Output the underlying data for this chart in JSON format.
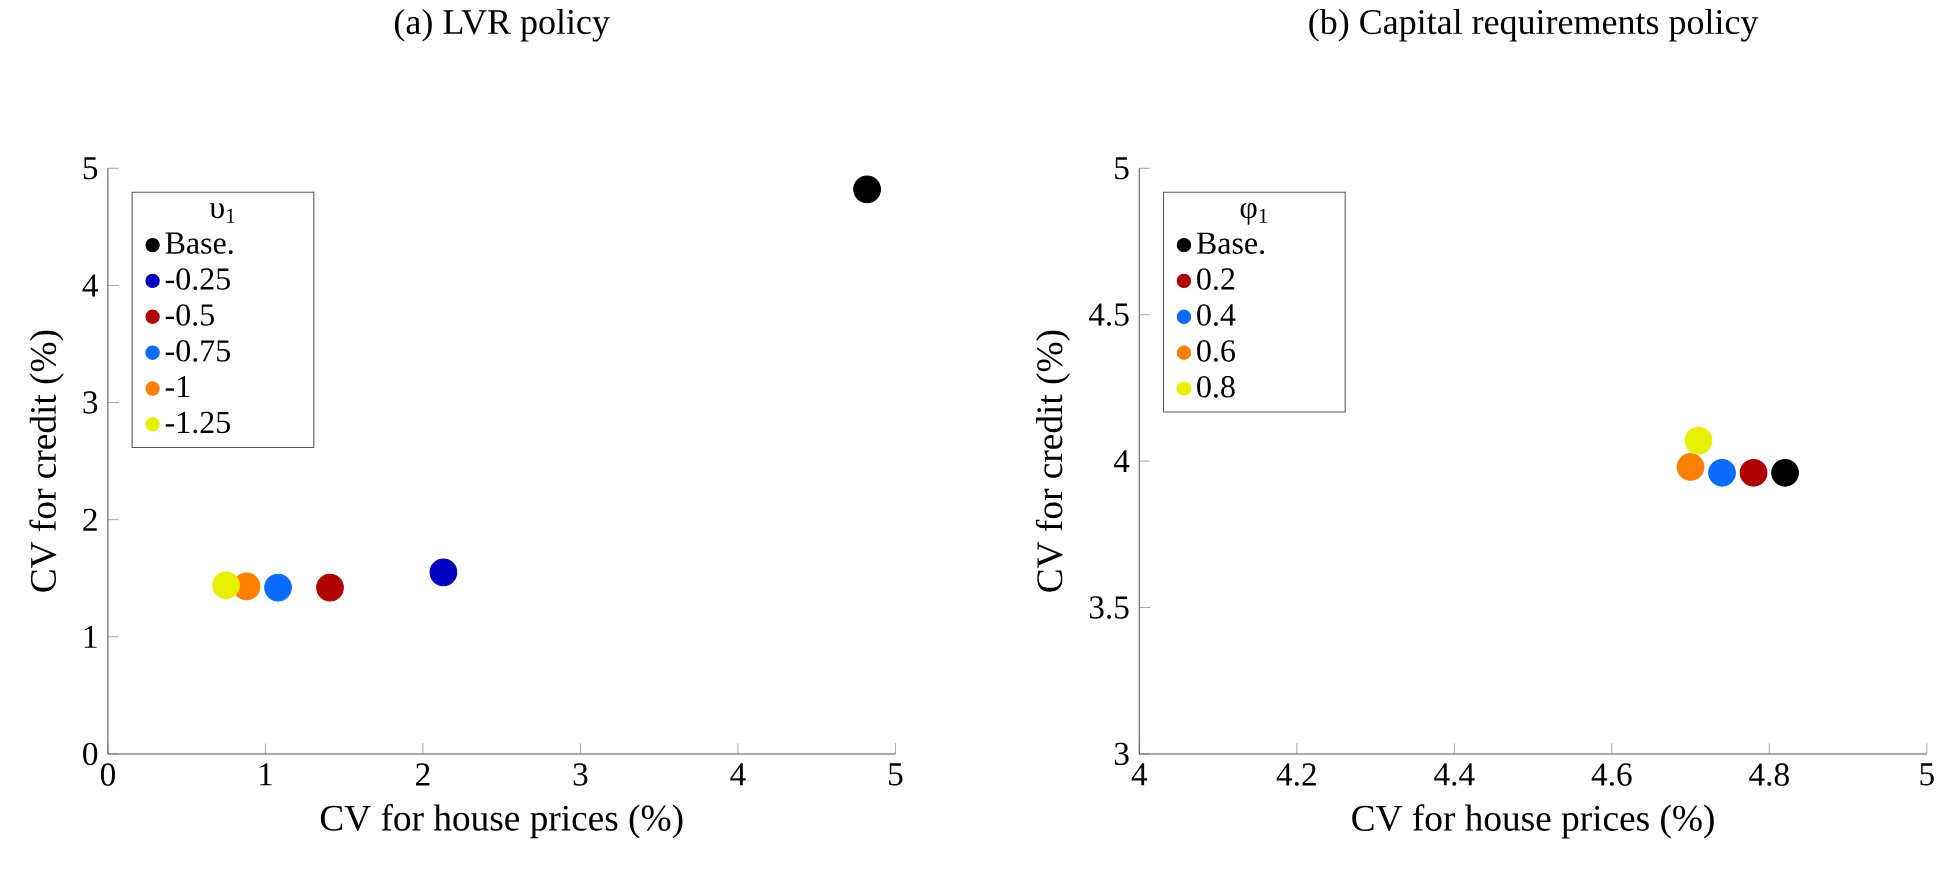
{
  "chart_data": [
    {
      "type": "scatter",
      "title": "(a) LVR policy",
      "xlabel": "CV for house prices (%)",
      "ylabel": "CV for credit (%)",
      "legend_title": "υ$_{1}$",
      "xlim": [
        0,
        5
      ],
      "ylim": [
        0,
        5
      ],
      "xticks": [
        0,
        1,
        2,
        3,
        4,
        5
      ],
      "yticks": [
        0,
        1,
        2,
        3,
        4,
        5
      ],
      "grid": false,
      "legend": "top left",
      "marker": "circle",
      "series": [
        {
          "name": "Base.",
          "color": "#000000",
          "x": [
            4.82
          ],
          "values": [
            4.82
          ]
        },
        {
          "name": "-0.25",
          "color": "#0000c0",
          "x": [
            2.13
          ],
          "values": [
            1.55
          ]
        },
        {
          "name": "-0.5",
          "color": "#b00000",
          "x": [
            1.41
          ],
          "values": [
            1.42
          ]
        },
        {
          "name": "-0.75",
          "color": "#0a6cff",
          "x": [
            1.08
          ],
          "values": [
            1.42
          ]
        },
        {
          "name": "-1",
          "color": "#ff7f00",
          "x": [
            0.88
          ],
          "values": [
            1.43
          ]
        },
        {
          "name": "-1.25",
          "color": "#e6f000",
          "x": [
            0.75
          ],
          "values": [
            1.44
          ]
        }
      ]
    },
    {
      "type": "scatter",
      "title": "(b) Capital requirements policy",
      "xlabel": "CV for house prices (%)",
      "ylabel": "CV for credit (%)",
      "legend_title": "φ$_{1}$",
      "xlim": [
        4,
        5
      ],
      "ylim": [
        3,
        5
      ],
      "xticks": [
        4,
        4.2,
        4.4,
        4.6,
        4.8,
        5
      ],
      "yticks": [
        3,
        3.5,
        4,
        4.5,
        5
      ],
      "grid": false,
      "legend": "top left",
      "marker": "circle",
      "series": [
        {
          "name": "Base.",
          "color": "#000000",
          "x": [
            4.82
          ],
          "values": [
            3.96
          ]
        },
        {
          "name": "0.2",
          "color": "#b00000",
          "x": [
            4.78
          ],
          "values": [
            3.96
          ]
        },
        {
          "name": "0.4",
          "color": "#0a6cff",
          "x": [
            4.74
          ],
          "values": [
            3.96
          ]
        },
        {
          "name": "0.6",
          "color": "#ff7f00",
          "x": [
            4.7
          ],
          "values": [
            3.98
          ]
        },
        {
          "name": "0.8",
          "color": "#e6f000",
          "x": [
            4.71
          ],
          "values": [
            4.07
          ]
        }
      ]
    }
  ]
}
